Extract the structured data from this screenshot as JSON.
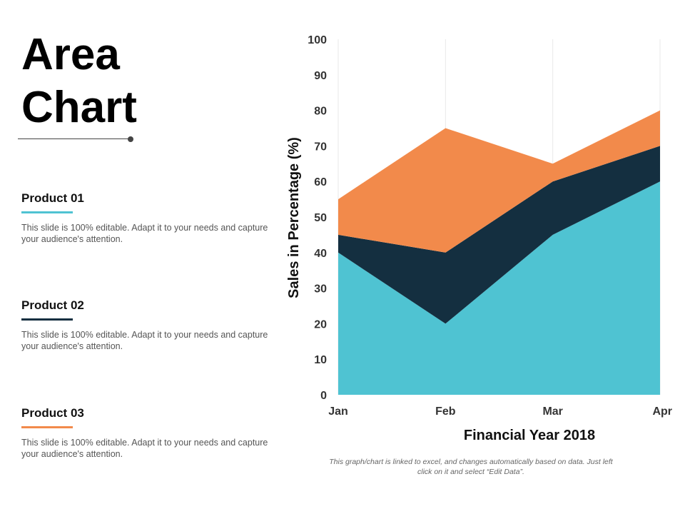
{
  "slide": {
    "title_line1": "Area",
    "title_line2": "Chart",
    "caption": "This graph/chart is linked to excel, and changes automatically based on data. Just left click on it and select “Edit Data”."
  },
  "products": [
    {
      "name": "Product 01",
      "description": "This slide is 100% editable. Adapt it to your needs and capture your audience's attention.",
      "color": "#4fc3d2"
    },
    {
      "name": "Product 02",
      "description": "This slide is 100% editable. Adapt it to your needs and capture your audience's attention.",
      "color": "#142f40"
    },
    {
      "name": "Product 03",
      "description": "This slide is 100% editable. Adapt it to your needs and capture your audience's attention.",
      "color": "#f28a4b"
    }
  ],
  "chart_data": {
    "type": "area",
    "stacked": true,
    "categories": [
      "Jan",
      "Feb",
      "Mar",
      "Apr"
    ],
    "series": [
      {
        "color": "#4fc3d2",
        "values": [
          40,
          20,
          45,
          60
        ]
      },
      {
        "color": "#142f40",
        "values": [
          5,
          20,
          15,
          10
        ]
      },
      {
        "color": "#f28a4b",
        "values": [
          10,
          35,
          5,
          10
        ]
      }
    ],
    "title": "",
    "xlabel": "Financial Year 2018",
    "ylabel": "Sales in Percentage (%)",
    "ylim": [
      0,
      100
    ],
    "yticks": [
      "0",
      "10",
      "20",
      "30",
      "40",
      "50",
      "60",
      "70",
      "80",
      "90",
      "100"
    ],
    "grid": "vertical",
    "legend": "none"
  }
}
